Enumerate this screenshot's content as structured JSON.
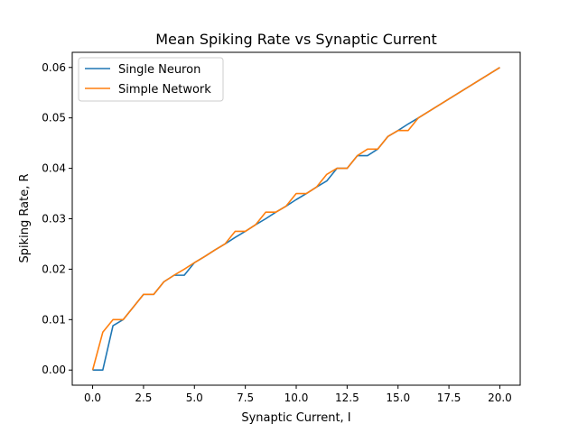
{
  "chart_data": {
    "type": "line",
    "title": "Mean Spiking Rate vs Synaptic Current",
    "xlabel": "Synaptic Current, I",
    "ylabel": "Spiking Rate, R",
    "xlim": [
      -1.0,
      21.0
    ],
    "ylim": [
      -0.003,
      0.063
    ],
    "xticks": [
      0.0,
      2.5,
      5.0,
      7.5,
      10.0,
      12.5,
      15.0,
      17.5,
      20.0
    ],
    "xtick_labels": [
      "0.0",
      "2.5",
      "5.0",
      "7.5",
      "10.0",
      "12.5",
      "15.0",
      "17.5",
      "20.0"
    ],
    "yticks": [
      0.0,
      0.01,
      0.02,
      0.03,
      0.04,
      0.05,
      0.06
    ],
    "ytick_labels": [
      "0.00",
      "0.01",
      "0.02",
      "0.03",
      "0.04",
      "0.05",
      "0.06"
    ],
    "grid": false,
    "legend_position": "upper-left",
    "series": [
      {
        "name": "Single Neuron",
        "color": "#1f77b4",
        "x": [
          0,
          0.5,
          1.0,
          1.5,
          2.0,
          2.5,
          3.0,
          3.5,
          4.0,
          4.5,
          5.0,
          5.5,
          6.0,
          6.5,
          7.0,
          7.5,
          8.0,
          8.5,
          9.0,
          9.5,
          10.0,
          10.5,
          11.0,
          11.5,
          12.0,
          12.5,
          13.0,
          13.5,
          14.0,
          14.5,
          15.0,
          15.5,
          16.0,
          20.0
        ],
        "y": [
          0.0,
          0.0,
          0.0088,
          0.01,
          0.0125,
          0.015,
          0.015,
          0.0175,
          0.0188,
          0.0188,
          0.0213,
          0.0225,
          0.0238,
          0.025,
          0.0263,
          0.0275,
          0.0288,
          0.03,
          0.0313,
          0.0325,
          0.0338,
          0.035,
          0.0363,
          0.0375,
          0.04,
          0.04,
          0.0425,
          0.0425,
          0.0438,
          0.0463,
          0.0475,
          0.0488,
          0.05,
          0.06
        ]
      },
      {
        "name": "Simple Network",
        "color": "#ff7f0e",
        "x": [
          0,
          0.5,
          1.0,
          1.5,
          2.0,
          2.5,
          3.0,
          3.5,
          4.0,
          4.5,
          5.0,
          5.5,
          6.0,
          6.5,
          7.0,
          7.5,
          8.0,
          8.5,
          9.0,
          9.5,
          10.0,
          10.5,
          11.0,
          11.5,
          12.0,
          12.5,
          13.0,
          13.5,
          14.0,
          14.5,
          15.0,
          15.5,
          16.0,
          20.0
        ],
        "y": [
          0.0,
          0.0075,
          0.01,
          0.01,
          0.0125,
          0.015,
          0.015,
          0.0175,
          0.0188,
          0.02,
          0.0213,
          0.0225,
          0.0238,
          0.025,
          0.0275,
          0.0275,
          0.0288,
          0.0313,
          0.0313,
          0.0325,
          0.035,
          0.035,
          0.0363,
          0.0388,
          0.04,
          0.04,
          0.0425,
          0.0438,
          0.0438,
          0.0463,
          0.0475,
          0.0475,
          0.05,
          0.06
        ]
      }
    ]
  }
}
